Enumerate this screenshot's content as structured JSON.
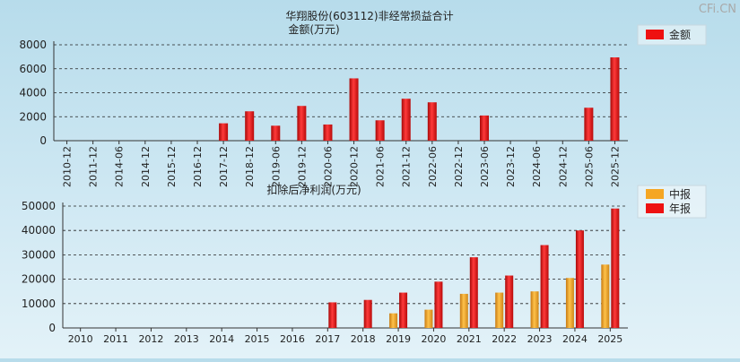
{
  "watermark": "CFi.CN",
  "chart_data": [
    {
      "type": "bar",
      "title": "华翔股份(603112)非经常损益合计",
      "subtitle": "金额(万元)",
      "categories": [
        "2010-12",
        "2011-12",
        "2014-06",
        "2014-12",
        "2015-12",
        "2016-12",
        "2017-12",
        "2018-12",
        "2019-06",
        "2019-12",
        "2020-06",
        "2020-12",
        "2021-06",
        "2021-12",
        "2022-06",
        "2022-12",
        "2023-06",
        "2023-12",
        "2024-06",
        "2024-12",
        "2025-06",
        "2025-12"
      ],
      "series": [
        {
          "name": "金额",
          "color": "#ee1111",
          "values": [
            0,
            0,
            0,
            0,
            0,
            0,
            1450,
            2450,
            1250,
            2900,
            1350,
            5200,
            1700,
            3500,
            3200,
            0,
            2100,
            0,
            0,
            0,
            2750,
            6950
          ]
        }
      ],
      "yticks": [
        "0",
        "2000",
        "4000",
        "6000",
        "8000"
      ],
      "ylim": [
        0,
        8000
      ],
      "grid": true,
      "legend": "top-right"
    },
    {
      "type": "bar",
      "title": "扣除后净利润(万元)",
      "categories": [
        "2010",
        "2011",
        "2012",
        "2013",
        "2014",
        "2015",
        "2016",
        "2017",
        "2018",
        "2019",
        "2020",
        "2021",
        "2022",
        "2023",
        "2024",
        "2025"
      ],
      "series": [
        {
          "name": "中报",
          "color": "#f5a623",
          "values": [
            0,
            0,
            0,
            0,
            0,
            0,
            0,
            0,
            0,
            6000,
            7500,
            14000,
            14500,
            15000,
            20500,
            26000
          ]
        },
        {
          "name": "年报",
          "color": "#ee1111",
          "values": [
            0,
            0,
            0,
            0,
            0,
            0,
            0,
            10500,
            11500,
            14500,
            19000,
            29000,
            21500,
            34000,
            40000,
            49000
          ]
        }
      ],
      "yticks": [
        "0",
        "10000",
        "20000",
        "30000",
        "40000",
        "50000"
      ],
      "ylim": [
        0,
        50000
      ],
      "grid": true,
      "legend": "top-right"
    }
  ]
}
